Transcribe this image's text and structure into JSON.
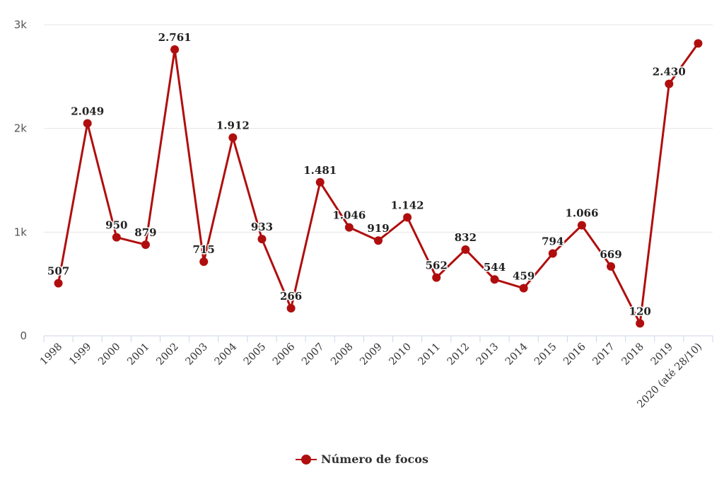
{
  "chart_data": {
    "type": "line",
    "categories": [
      "1998",
      "1999",
      "2000",
      "2001",
      "2002",
      "2003",
      "2004",
      "2005",
      "2006",
      "2007",
      "2008",
      "2009",
      "2010",
      "2011",
      "2012",
      "2013",
      "2014",
      "2015",
      "2016",
      "2017",
      "2018",
      "2019",
      "2020 (até 28/10)"
    ],
    "series": [
      {
        "name": "Número de focos",
        "color": "#b00e0e",
        "values": [
          507,
          2049,
          950,
          879,
          2761,
          715,
          1912,
          933,
          266,
          1481,
          1046,
          919,
          1142,
          562,
          832,
          544,
          459,
          794,
          1066,
          669,
          120,
          2430,
          2820
        ],
        "labels": [
          "507",
          "2.049",
          "950",
          "879",
          "2.761",
          "715",
          "1.912",
          "933",
          "266",
          "1.481",
          "1.046",
          "919",
          "1.142",
          "562",
          "832",
          "544",
          "459",
          "794",
          "1.066",
          "669",
          "120",
          "2.430",
          ""
        ]
      }
    ],
    "ylim": [
      0,
      3000
    ],
    "yticks": [
      0,
      1000,
      2000,
      3000
    ],
    "ytick_labels": [
      "0",
      "1k",
      "2k",
      "3k"
    ],
    "grid": true,
    "legend_position": "bottom-center",
    "xlabel": "",
    "ylabel": "",
    "title": ""
  },
  "legend": {
    "label": "Número de focos"
  }
}
